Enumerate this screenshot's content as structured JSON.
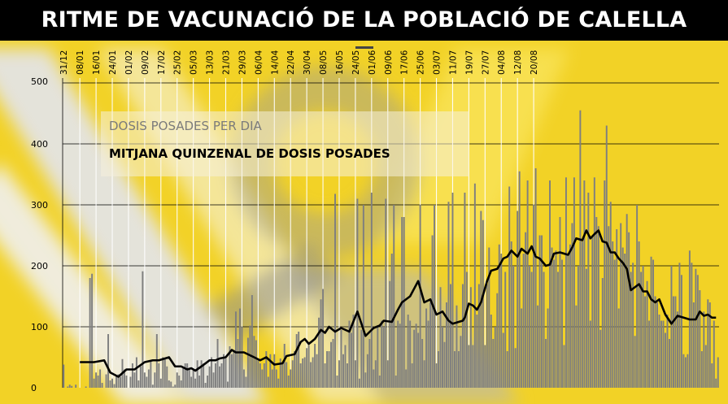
{
  "title": "RITME DE VACUNACIÓ DE LA POBLACIÓ DE CALELLA",
  "colors": {
    "background_yellow": "#f2d226",
    "bar_gray": "#7f7f7f",
    "line_black": "#000000",
    "title_bg": "#000000",
    "title_text": "#ffffff"
  },
  "chart_data": {
    "type": "bar",
    "title": "RITME DE VACUNACIÓ DE LA POBLACIÓ DE CALELLA",
    "xlabel": "",
    "ylabel": "",
    "ylim": [
      0,
      500
    ],
    "yticks": [
      0,
      100,
      200,
      300,
      400,
      500
    ],
    "x_tick_labels": [
      "31/12",
      "08/01",
      "16/01",
      "24/01",
      "01/02",
      "09/02",
      "17/02",
      "25/02",
      "05/03",
      "13/03",
      "21/03",
      "29/03",
      "06/04",
      "14/04",
      "22/04",
      "30/04",
      "08/05",
      "16/05",
      "24/05",
      "01/06",
      "09/06",
      "17/06",
      "25/06",
      "03/07",
      "11/07",
      "19/07",
      "27/07",
      "04/08",
      "12/08",
      "20/08"
    ],
    "tick_interval_days": 8,
    "grid": true,
    "legend": "top-left",
    "series": [
      {
        "name": "DOSIS POSADES PER DIA",
        "type": "bar",
        "color": "#7f7f7f",
        "values": [
          38,
          0,
          2,
          5,
          3,
          0,
          5,
          0,
          0,
          0,
          0,
          2,
          0,
          180,
          187,
          15,
          25,
          20,
          30,
          8,
          0,
          22,
          88,
          12,
          15,
          6,
          20,
          22,
          18,
          47,
          30,
          20,
          0,
          18,
          40,
          25,
          50,
          12,
          35,
          191,
          25,
          18,
          30,
          45,
          5,
          25,
          88,
          40,
          15,
          50,
          48,
          35,
          12,
          10,
          2,
          5,
          25,
          20,
          12,
          32,
          40,
          40,
          30,
          18,
          28,
          15,
          45,
          20,
          45,
          40,
          8,
          20,
          35,
          50,
          25,
          40,
          80,
          35,
          40,
          55,
          48,
          10,
          68,
          55,
          62,
          125,
          80,
          130,
          100,
          30,
          18,
          82,
          102,
          152,
          85,
          78,
          45,
          40,
          30,
          40,
          60,
          18,
          55,
          30,
          55,
          30,
          15,
          48,
          40,
          72,
          42,
          20,
          30,
          45,
          60,
          88,
          92,
          40,
          48,
          50,
          65,
          70,
          42,
          50,
          72,
          55,
          115,
          145,
          162,
          40,
          60,
          60,
          75,
          80,
          318,
          20,
          45,
          95,
          55,
          70,
          40,
          110,
          90,
          120,
          45,
          310,
          15,
          95,
          300,
          25,
          55,
          80,
          320,
          30,
          45,
          100,
          20,
          110,
          100,
          310,
          45,
          175,
          220,
          300,
          20,
          110,
          105,
          280,
          280,
          30,
          120,
          110,
          40,
          95,
          105,
          90,
          300,
          80,
          45,
          130,
          110,
          140,
          250,
          300,
          40,
          60,
          165,
          100,
          75,
          140,
          305,
          170,
          320,
          60,
          135,
          60,
          85,
          170,
          320,
          190,
          70,
          165,
          70,
          335,
          120,
          170,
          290,
          275,
          70,
          170,
          230,
          120,
          80,
          100,
          155,
          235,
          220,
          90,
          190,
          60,
          330,
          240,
          200,
          65,
          290,
          355,
          130,
          220,
          255,
          340,
          200,
          190,
          300,
          360,
          135,
          250,
          250,
          190,
          80,
          130,
          340,
          230,
          210,
          225,
          190,
          280,
          210,
          70,
          345,
          220,
          235,
          270,
          345,
          135,
          200,
          455,
          240,
          340,
          195,
          320,
          110,
          250,
          345,
          280,
          265,
          95,
          180,
          340,
          430,
          265,
          305,
          240,
          210,
          260,
          130,
          270,
          230,
          220,
          285,
          255,
          190,
          205,
          85,
          300,
          240,
          190,
          200,
          150,
          175,
          110,
          215,
          210,
          150,
          140,
          120,
          110,
          110,
          90,
          120,
          80,
          200,
          150,
          150,
          125,
          205,
          185,
          55,
          50,
          55,
          225,
          205,
          140,
          195,
          185,
          160,
          60,
          125,
          70,
          145,
          140,
          40,
          110,
          15,
          50
        ]
      },
      {
        "name": "MITJANA QUINZENAL DE DOSIS POSADES",
        "type": "line",
        "color": "#000000",
        "points": [
          [
            8,
            42
          ],
          [
            15,
            42
          ],
          [
            20,
            45
          ],
          [
            23,
            25
          ],
          [
            27,
            18
          ],
          [
            31,
            30
          ],
          [
            35,
            30
          ],
          [
            40,
            42
          ],
          [
            44,
            45
          ],
          [
            47,
            45
          ],
          [
            52,
            50
          ],
          [
            55,
            35
          ],
          [
            58,
            35
          ],
          [
            61,
            30
          ],
          [
            63,
            32
          ],
          [
            65,
            28
          ],
          [
            68,
            35
          ],
          [
            72,
            45
          ],
          [
            75,
            45
          ],
          [
            77,
            48
          ],
          [
            80,
            50
          ],
          [
            83,
            62
          ],
          [
            85,
            58
          ],
          [
            89,
            58
          ],
          [
            94,
            50
          ],
          [
            97,
            45
          ],
          [
            100,
            50
          ],
          [
            104,
            38
          ],
          [
            108,
            40
          ],
          [
            110,
            52
          ],
          [
            114,
            55
          ],
          [
            117,
            75
          ],
          [
            119,
            80
          ],
          [
            121,
            72
          ],
          [
            124,
            80
          ],
          [
            127,
            95
          ],
          [
            129,
            90
          ],
          [
            131,
            100
          ],
          [
            134,
            92
          ],
          [
            137,
            98
          ],
          [
            141,
            92
          ],
          [
            145,
            125
          ],
          [
            149,
            85
          ],
          [
            153,
            98
          ],
          [
            156,
            102
          ],
          [
            158,
            110
          ],
          [
            162,
            108
          ],
          [
            165,
            128
          ],
          [
            167,
            140
          ],
          [
            169,
            145
          ],
          [
            171,
            150
          ],
          [
            175,
            175
          ],
          [
            178,
            140
          ],
          [
            181,
            145
          ],
          [
            184,
            120
          ],
          [
            187,
            125
          ],
          [
            190,
            110
          ],
          [
            192,
            105
          ],
          [
            195,
            108
          ],
          [
            197,
            110
          ],
          [
            198,
            115
          ],
          [
            200,
            138
          ],
          [
            202,
            135
          ],
          [
            204,
            128
          ],
          [
            206,
            140
          ],
          [
            209,
            175
          ],
          [
            211,
            192
          ],
          [
            214,
            195
          ],
          [
            215,
            200
          ],
          [
            217,
            212
          ],
          [
            219,
            215
          ],
          [
            221,
            225
          ],
          [
            224,
            215
          ],
          [
            226,
            228
          ],
          [
            229,
            220
          ],
          [
            231,
            232
          ],
          [
            233,
            215
          ],
          [
            235,
            212
          ],
          [
            238,
            200
          ],
          [
            240,
            202
          ],
          [
            242,
            220
          ],
          [
            245,
            222
          ],
          [
            247,
            220
          ],
          [
            249,
            218
          ],
          [
            251,
            230
          ],
          [
            253,
            245
          ],
          [
            256,
            242
          ],
          [
            258,
            258
          ],
          [
            260,
            245
          ],
          [
            262,
            252
          ],
          [
            264,
            258
          ],
          [
            266,
            240
          ],
          [
            268,
            238
          ],
          [
            270,
            222
          ],
          [
            272,
            222
          ],
          [
            274,
            212
          ],
          [
            276,
            205
          ],
          [
            278,
            195
          ],
          [
            280,
            160
          ],
          [
            282,
            165
          ],
          [
            284,
            170
          ],
          [
            286,
            158
          ],
          [
            288,
            158
          ],
          [
            290,
            145
          ],
          [
            292,
            140
          ],
          [
            294,
            145
          ],
          [
            297,
            120
          ],
          [
            300,
            105
          ],
          [
            303,
            118
          ],
          [
            306,
            115
          ],
          [
            309,
            112
          ],
          [
            312,
            112
          ],
          [
            314,
            125
          ],
          [
            316,
            118
          ],
          [
            318,
            120
          ],
          [
            320,
            115
          ],
          [
            322,
            115
          ]
        ]
      }
    ]
  },
  "legend": {
    "daily_label": "DOSIS POSADES PER DIA",
    "avg_label": "MITJANA QUINZENAL DE DOSIS POSADES"
  }
}
